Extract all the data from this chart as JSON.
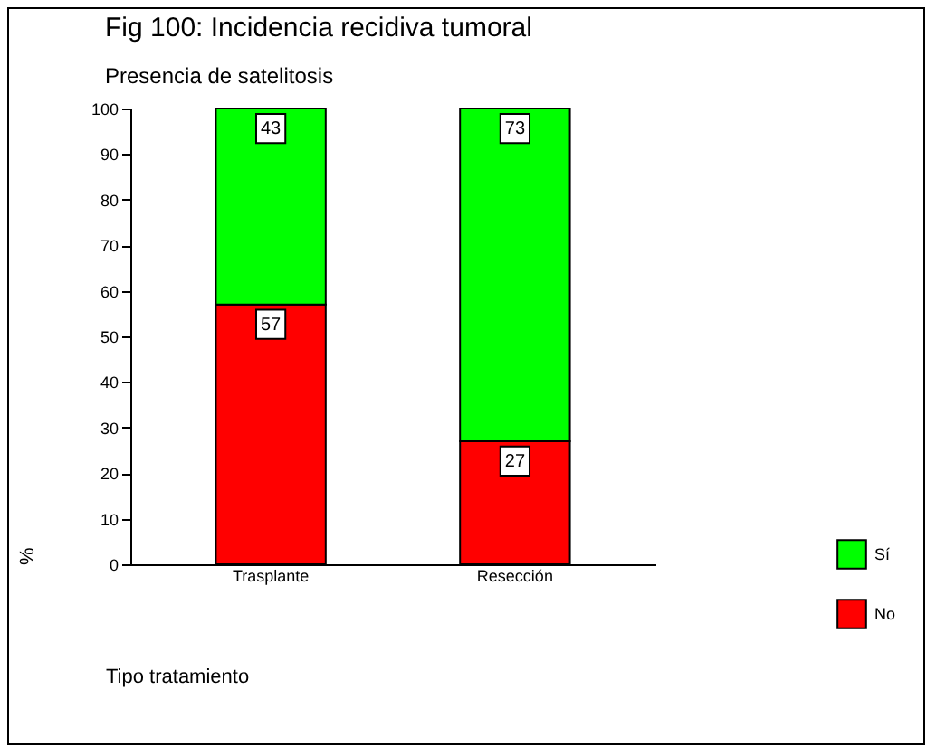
{
  "chart_data": {
    "type": "bar",
    "title": "Fig 100:  Incidencia recidiva tumoral",
    "subtitle": "Presencia de satelitosis",
    "xlabel": "Tipo tratamiento",
    "ylabel": "%",
    "categories": [
      "Trasplante",
      "Resección"
    ],
    "series": [
      {
        "name": "No",
        "color": "#ff0000",
        "values": [
          57,
          27
        ]
      },
      {
        "name": "Sí",
        "color": "#00ff00",
        "values": [
          43,
          73
        ]
      }
    ],
    "stacked": true,
    "ylim": [
      0,
      100
    ],
    "yticks": [
      0,
      10,
      20,
      30,
      40,
      50,
      60,
      70,
      80,
      90,
      100
    ],
    "grid": false,
    "legend": "right",
    "data_labels": true
  }
}
